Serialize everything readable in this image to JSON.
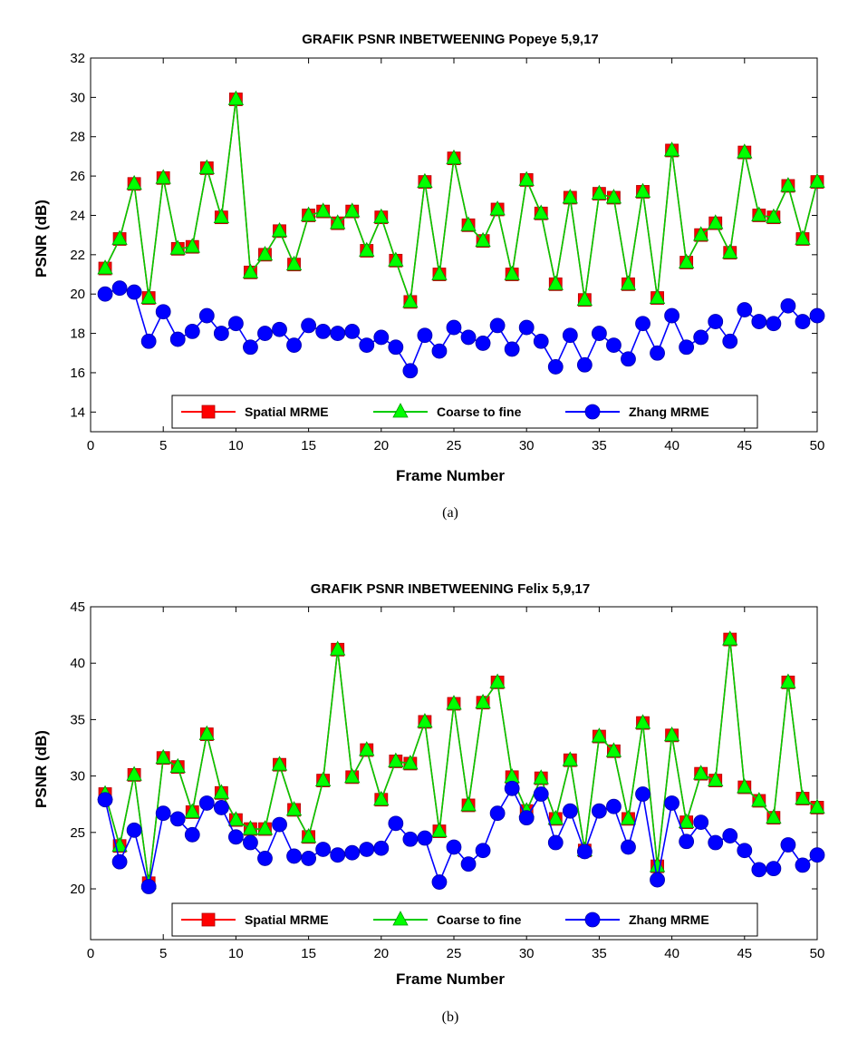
{
  "colors": {
    "spatial": "#ff0000",
    "coarse": "#00ff00",
    "coarse_line": "#00cc00",
    "zhang": "#0000ff"
  },
  "chart_data": [
    {
      "type": "line",
      "title": "GRAFIK PSNR INBETWEENING Popeye 5,9,17",
      "xlabel": "Frame Number",
      "ylabel": "PSNR (dB)",
      "caption": "(a)",
      "xlim": [
        0,
        50
      ],
      "ylim": [
        13,
        32
      ],
      "xticks": [
        0,
        5,
        10,
        15,
        20,
        25,
        30,
        35,
        40,
        45,
        50
      ],
      "yticks": [
        14,
        16,
        18,
        20,
        22,
        24,
        26,
        28,
        30,
        32
      ],
      "legend_position": "bottom-center",
      "legend": [
        "Spatial MRME",
        "Coarse to fine",
        "Zhang MRME"
      ],
      "x": [
        1,
        2,
        3,
        4,
        5,
        6,
        7,
        8,
        9,
        10,
        11,
        12,
        13,
        14,
        15,
        16,
        17,
        18,
        19,
        20,
        21,
        22,
        23,
        24,
        25,
        26,
        27,
        28,
        29,
        30,
        31,
        32,
        33,
        34,
        35,
        36,
        37,
        38,
        39,
        40,
        41,
        42,
        43,
        44,
        45,
        46,
        47,
        48,
        49,
        50
      ],
      "series": [
        {
          "name": "Spatial MRME",
          "marker": "square",
          "values": [
            21.3,
            22.8,
            25.6,
            19.8,
            25.9,
            22.3,
            22.4,
            26.4,
            23.9,
            29.9,
            21.1,
            22.0,
            23.2,
            21.5,
            24.0,
            24.2,
            23.6,
            24.2,
            22.2,
            23.9,
            21.7,
            19.6,
            25.7,
            21.0,
            26.9,
            23.5,
            22.7,
            24.3,
            21.0,
            25.8,
            24.1,
            20.5,
            24.9,
            19.7,
            25.1,
            24.9,
            20.5,
            25.2,
            19.8,
            27.3,
            21.6,
            23.0,
            23.6,
            22.1,
            27.2,
            24.0,
            23.9,
            25.5,
            22.8,
            25.7
          ]
        },
        {
          "name": "Coarse to fine",
          "marker": "triangle",
          "values": [
            21.3,
            22.8,
            25.6,
            19.8,
            25.9,
            22.3,
            22.4,
            26.4,
            23.9,
            29.9,
            21.1,
            22.0,
            23.2,
            21.5,
            24.0,
            24.2,
            23.6,
            24.2,
            22.2,
            23.9,
            21.7,
            19.6,
            25.7,
            21.0,
            26.9,
            23.5,
            22.7,
            24.3,
            21.0,
            25.8,
            24.1,
            20.5,
            24.9,
            19.7,
            25.1,
            24.9,
            20.5,
            25.2,
            19.8,
            27.3,
            21.6,
            23.0,
            23.6,
            22.1,
            27.2,
            24.0,
            23.9,
            25.5,
            22.8,
            25.7
          ]
        },
        {
          "name": "Zhang MRME",
          "marker": "circle",
          "values": [
            20.0,
            20.3,
            20.1,
            17.6,
            19.1,
            17.7,
            18.1,
            18.9,
            18.0,
            18.5,
            17.3,
            18.0,
            18.2,
            17.4,
            18.4,
            18.1,
            18.0,
            18.1,
            17.4,
            17.8,
            17.3,
            16.1,
            17.9,
            17.1,
            18.3,
            17.8,
            17.5,
            18.4,
            17.2,
            18.3,
            17.6,
            16.3,
            17.9,
            16.4,
            18.0,
            17.4,
            16.7,
            18.5,
            17.0,
            18.9,
            17.3,
            17.8,
            18.6,
            17.6,
            19.2,
            18.6,
            18.5,
            19.4,
            18.6,
            18.9
          ]
        }
      ]
    },
    {
      "type": "line",
      "title": "GRAFIK PSNR INBETWEENING Felix 5,9,17",
      "xlabel": "Frame Number",
      "ylabel": "PSNR (dB)",
      "caption": "(b)",
      "xlim": [
        0,
        50
      ],
      "ylim": [
        15.5,
        45
      ],
      "xticks": [
        0,
        5,
        10,
        15,
        20,
        25,
        30,
        35,
        40,
        45,
        50
      ],
      "yticks": [
        20,
        25,
        30,
        35,
        40,
        45
      ],
      "legend_position": "bottom-center",
      "legend": [
        "Spatial MRME",
        "Coarse to fine",
        "Zhang MRME"
      ],
      "x": [
        1,
        2,
        3,
        4,
        5,
        6,
        7,
        8,
        9,
        10,
        11,
        12,
        13,
        14,
        15,
        16,
        17,
        18,
        19,
        20,
        21,
        22,
        23,
        24,
        25,
        26,
        27,
        28,
        29,
        30,
        31,
        32,
        33,
        34,
        35,
        36,
        37,
        38,
        39,
        40,
        41,
        42,
        43,
        44,
        45,
        46,
        47,
        48,
        49,
        50
      ],
      "series": [
        {
          "name": "Spatial MRME",
          "marker": "square",
          "values": [
            28.4,
            23.8,
            30.1,
            20.5,
            31.6,
            30.8,
            26.8,
            33.7,
            28.5,
            26.1,
            25.3,
            25.3,
            31.0,
            27.0,
            24.6,
            29.6,
            41.2,
            29.9,
            32.3,
            27.9,
            31.3,
            31.1,
            34.8,
            25.1,
            36.4,
            27.4,
            36.5,
            38.3,
            29.9,
            26.9,
            29.8,
            26.2,
            31.4,
            23.4,
            33.5,
            32.2,
            26.2,
            34.7,
            22.0,
            33.6,
            25.9,
            30.2,
            29.6,
            42.1,
            29.0,
            27.8,
            26.3,
            38.3,
            28.0,
            27.2
          ]
        },
        {
          "name": "Coarse to fine",
          "marker": "triangle",
          "values": [
            28.4,
            23.8,
            30.1,
            20.5,
            31.6,
            30.8,
            26.8,
            33.7,
            28.5,
            26.1,
            25.3,
            25.3,
            31.0,
            27.0,
            24.6,
            29.6,
            41.2,
            29.9,
            32.3,
            27.9,
            31.3,
            31.1,
            34.8,
            25.1,
            36.4,
            27.4,
            36.5,
            38.3,
            29.9,
            26.9,
            29.8,
            26.2,
            31.4,
            23.4,
            33.5,
            32.2,
            26.2,
            34.7,
            22.0,
            33.6,
            25.9,
            30.2,
            29.6,
            42.1,
            29.0,
            27.8,
            26.3,
            38.3,
            28.0,
            27.2
          ]
        },
        {
          "name": "Zhang MRME",
          "marker": "circle",
          "values": [
            27.9,
            22.4,
            25.2,
            20.2,
            26.7,
            26.2,
            24.8,
            27.6,
            27.2,
            24.6,
            24.1,
            22.7,
            25.7,
            22.9,
            22.7,
            23.5,
            23.0,
            23.2,
            23.5,
            23.6,
            25.8,
            24.4,
            24.5,
            20.6,
            23.7,
            22.2,
            23.4,
            26.7,
            28.9,
            26.3,
            28.4,
            24.1,
            26.9,
            23.3,
            26.9,
            27.3,
            23.7,
            28.4,
            20.8,
            27.6,
            24.2,
            25.9,
            24.1,
            24.7,
            23.4,
            21.7,
            21.8,
            23.9,
            22.1,
            23.0
          ]
        }
      ]
    }
  ]
}
